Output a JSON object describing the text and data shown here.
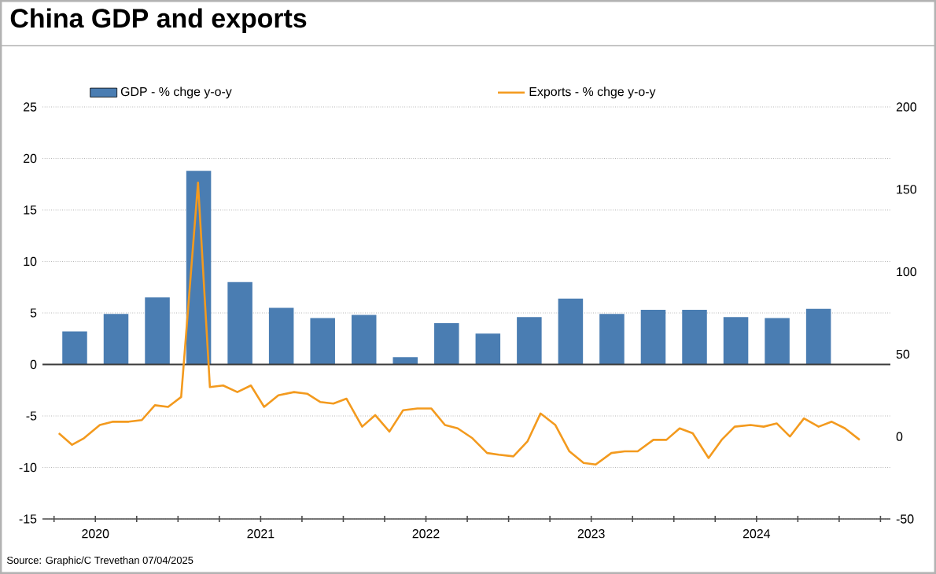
{
  "chart_data": {
    "type": "bar",
    "title": "China GDP and exports",
    "annotations": [
      "Source: Graphic/C Trevethan 07/04/2025"
    ],
    "series": [
      {
        "name": "GDP - % chge y-o-y",
        "axis": "y",
        "color": "#4a7db2",
        "x": [
          2020.375,
          2020.625,
          2020.875,
          2021.125,
          2021.375,
          2021.625,
          2021.875,
          2022.125,
          2022.375,
          2022.625,
          2022.875,
          2023.125,
          2023.375,
          2023.625,
          2023.875,
          2024.125,
          2024.375,
          2024.625,
          2024.875
        ],
        "values": [
          3.2,
          4.9,
          6.5,
          18.8,
          8.0,
          5.5,
          4.5,
          4.8,
          0.7,
          4.0,
          3.0,
          4.6,
          6.4,
          4.9,
          5.3,
          5.3,
          4.6,
          4.5,
          5.4
        ]
      },
      {
        "name": "Exports - % chge y-o-y",
        "type": "line",
        "axis": "y2",
        "color": "#f39a1e",
        "x": [
          2020.279,
          2020.359,
          2020.431,
          2020.527,
          2020.607,
          2020.702,
          2020.781,
          2020.86,
          2020.94,
          2021.019,
          2021.121,
          2021.193,
          2021.273,
          2021.359,
          2021.441,
          2021.521,
          2021.607,
          2021.702,
          2021.781,
          2021.86,
          2021.94,
          2022.019,
          2022.114,
          2022.193,
          2022.279,
          2022.362,
          2022.448,
          2022.533,
          2022.615,
          2022.692,
          2022.781,
          2022.87,
          2022.94,
          2023.029,
          2023.114,
          2023.193,
          2023.283,
          2023.368,
          2023.454,
          2023.527,
          2023.622,
          2023.702,
          2023.781,
          2023.876,
          2023.955,
          2024.035,
          2024.114,
          2024.21,
          2024.289,
          2024.368,
          2024.464,
          2024.543,
          2024.622,
          2024.702,
          2024.787,
          2024.876,
          2024.955,
          2025.035,
          2025.124
        ],
        "values": [
          2,
          -5,
          -1,
          7,
          9,
          9,
          10,
          19,
          18,
          24,
          154,
          30,
          31,
          27,
          31,
          18,
          25,
          27,
          26,
          21,
          20,
          23,
          6,
          13,
          3,
          16,
          17,
          17,
          7,
          5,
          -1,
          -10,
          -11,
          -12,
          -3,
          14,
          7,
          -9,
          -16,
          -17,
          -10,
          -9,
          -9,
          -2,
          -2,
          5,
          2,
          -13,
          -2,
          6,
          7,
          6,
          8,
          0,
          11,
          6,
          9,
          5,
          -2
        ]
      }
    ],
    "xlim": [
      2020.18,
      2025.31
    ],
    "xticks": [
      {
        "value": 2020.25,
        "label": null
      },
      {
        "value": 2020.5,
        "label": "2020"
      },
      {
        "value": 2020.75,
        "label": null
      },
      {
        "value": 2021,
        "label": null
      },
      {
        "value": 2021.25,
        "label": null
      },
      {
        "value": 2021.5,
        "label": "2021"
      },
      {
        "value": 2021.75,
        "label": null
      },
      {
        "value": 2022,
        "label": null
      },
      {
        "value": 2022.25,
        "label": null
      },
      {
        "value": 2022.5,
        "label": "2022"
      },
      {
        "value": 2022.75,
        "label": null
      },
      {
        "value": 2023,
        "label": null
      },
      {
        "value": 2023.25,
        "label": null
      },
      {
        "value": 2023.5,
        "label": "2023"
      },
      {
        "value": 2023.75,
        "label": null
      },
      {
        "value": 2024,
        "label": null
      },
      {
        "value": 2024.25,
        "label": null
      },
      {
        "value": 2024.5,
        "label": "2024"
      },
      {
        "value": 2024.75,
        "label": null
      },
      {
        "value": 2025,
        "label": null
      },
      {
        "value": 2025.25,
        "label": null
      }
    ],
    "ylim": [
      -15,
      25
    ],
    "yticks": [
      -15,
      -10,
      -5,
      0,
      5,
      10,
      15,
      20,
      25
    ],
    "y2lim": [
      -50,
      200
    ],
    "y2ticks": [
      -50,
      0,
      50,
      100,
      150,
      200
    ],
    "ref_lines": [
      {
        "axis": "y",
        "value": 0,
        "color": "#3a3a3a"
      }
    ],
    "grid": "y",
    "legend": "top",
    "marker": "none",
    "line_style": "solid"
  }
}
